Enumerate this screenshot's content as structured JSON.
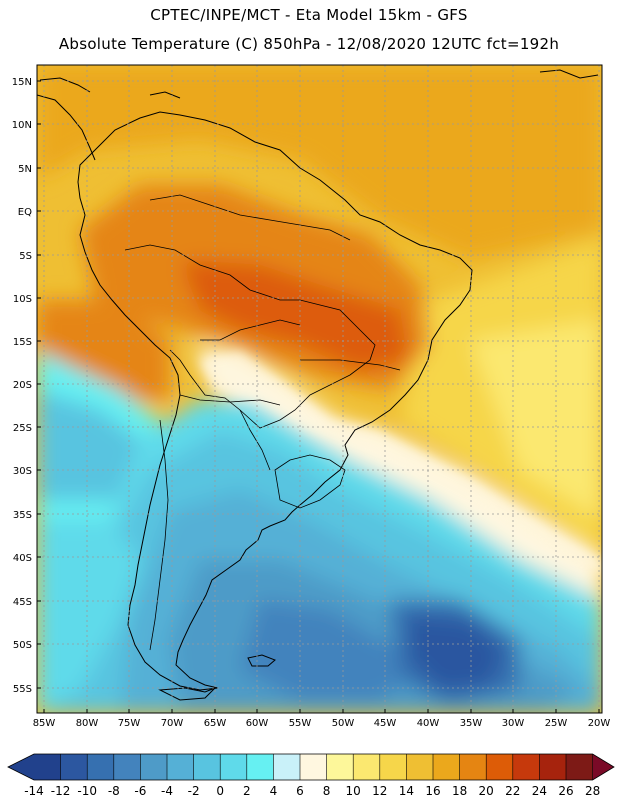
{
  "header": {
    "line1": "CPTEC/INPE/MCT  -   Eta Model 15km  -  GFS",
    "line2": "Absolute Temperature (C) 850hPa  -  12/08/2020 12UTC fct=192h"
  },
  "map": {
    "lat_labels": [
      "15N",
      "10N",
      "5N",
      "EQ",
      "5S",
      "10S",
      "15S",
      "20S",
      "25S",
      "30S",
      "35S",
      "40S",
      "45S",
      "50S",
      "55S"
    ],
    "lon_labels": [
      "85W",
      "80W",
      "75W",
      "70W",
      "65W",
      "60W",
      "55W",
      "50W",
      "45W",
      "40W",
      "35W",
      "30W",
      "25W",
      "20W"
    ]
  },
  "colorbar": {
    "labels": [
      "-14",
      "-12",
      "-10",
      "-8",
      "-6",
      "-4",
      "-2",
      "0",
      "2",
      "4",
      "6",
      "8",
      "10",
      "12",
      "14",
      "16",
      "18",
      "20",
      "22",
      "24",
      "26",
      "28"
    ],
    "colors": [
      "#21418c",
      "#2c57a0",
      "#3670b0",
      "#4383bd",
      "#4e9bc8",
      "#55b0d6",
      "#58c4e0",
      "#5fdaea",
      "#66f0f2",
      "#c9f1f9",
      "#fff7e0",
      "#fdf79a",
      "#fbe870",
      "#f6d64a",
      "#efbf33",
      "#eba81c",
      "#e58512",
      "#dd5c07",
      "#c6390c",
      "#a6230d",
      "#7d1a16",
      "#7a0a27"
    ]
  }
}
